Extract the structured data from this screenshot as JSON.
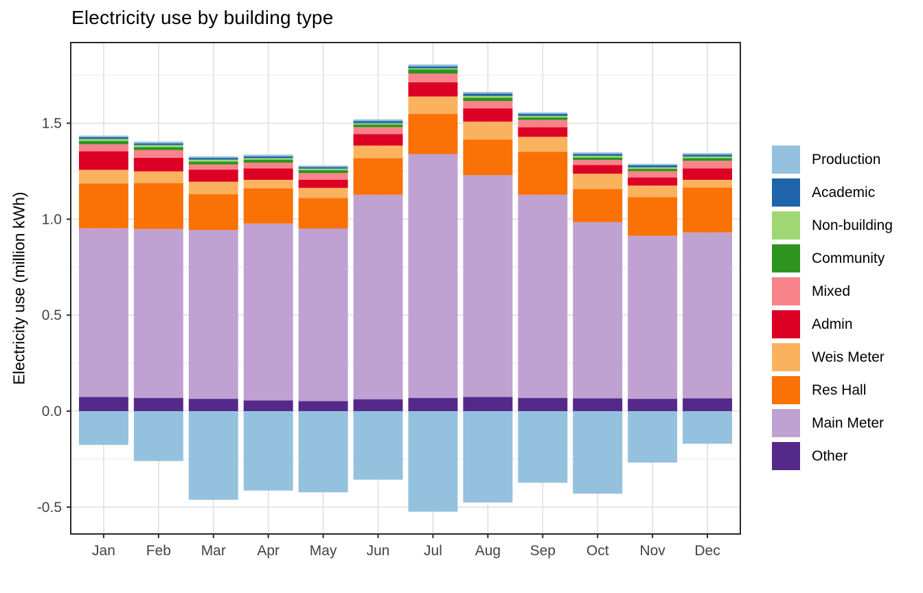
{
  "chart_data": {
    "type": "bar",
    "stacked": true,
    "title": "Electricity use by building type",
    "xlabel": "",
    "ylabel": "Electricity use (million kWh)",
    "categories": [
      "Jan",
      "Feb",
      "Mar",
      "Apr",
      "May",
      "Jun",
      "Jul",
      "Aug",
      "Sep",
      "Oct",
      "Nov",
      "Dec"
    ],
    "ytick_labels": [
      "-0.5",
      "0.0",
      "0.5",
      "1.0",
      "1.5"
    ],
    "ytick_values": [
      -0.5,
      0.0,
      0.5,
      1.0,
      1.5
    ],
    "minor_gridlines": [
      -0.25,
      0.25,
      0.75,
      1.25,
      1.75
    ],
    "ylim": [
      -0.64,
      1.92
    ],
    "grid": "on",
    "legend_position": "right",
    "legend_order": [
      "Production",
      "Academic",
      "Non-building",
      "Community",
      "Mixed",
      "Admin",
      "Weis Meter",
      "Res Hall",
      "Main Meter",
      "Other"
    ],
    "colors": {
      "Production": "#94c1dd",
      "Academic": "#1f63a8",
      "Non-building": "#9fd873",
      "Community": "#2d9420",
      "Mixed": "#f8838a",
      "Admin": "#dc0024",
      "Weis Meter": "#fab25f",
      "Res Hall": "#fa7106",
      "Main Meter": "#c0a2d2",
      "Other": "#55298a"
    },
    "series_stack_bottom_to_top": [
      {
        "name": "Other",
        "values": [
          0.074,
          0.069,
          0.064,
          0.056,
          0.052,
          0.062,
          0.069,
          0.074,
          0.069,
          0.067,
          0.064,
          0.067
        ]
      },
      {
        "name": "Main Meter",
        "values": [
          0.878,
          0.88,
          0.88,
          0.921,
          0.899,
          1.065,
          1.27,
          1.155,
          1.058,
          0.918,
          0.849,
          0.864
        ]
      },
      {
        "name": "Res Hall",
        "values": [
          0.234,
          0.238,
          0.186,
          0.183,
          0.159,
          0.191,
          0.209,
          0.186,
          0.224,
          0.172,
          0.202,
          0.234
        ]
      },
      {
        "name": "Weis Meter",
        "values": [
          0.071,
          0.062,
          0.065,
          0.045,
          0.053,
          0.065,
          0.091,
          0.093,
          0.078,
          0.08,
          0.06,
          0.04
        ]
      },
      {
        "name": "Admin",
        "values": [
          0.097,
          0.071,
          0.063,
          0.059,
          0.042,
          0.06,
          0.074,
          0.069,
          0.05,
          0.045,
          0.042,
          0.059
        ]
      },
      {
        "name": "Mixed",
        "values": [
          0.036,
          0.04,
          0.027,
          0.03,
          0.035,
          0.036,
          0.045,
          0.038,
          0.038,
          0.026,
          0.033,
          0.04
        ]
      },
      {
        "name": "Community",
        "values": [
          0.017,
          0.015,
          0.015,
          0.016,
          0.015,
          0.014,
          0.022,
          0.018,
          0.013,
          0.013,
          0.012,
          0.014
        ]
      },
      {
        "name": "Non-building",
        "values": [
          0.011,
          0.011,
          0.01,
          0.008,
          0.008,
          0.007,
          0.006,
          0.009,
          0.008,
          0.009,
          0.008,
          0.008
        ]
      },
      {
        "name": "Academic",
        "values": [
          0.009,
          0.009,
          0.009,
          0.009,
          0.008,
          0.011,
          0.01,
          0.012,
          0.01,
          0.009,
          0.01,
          0.01
        ]
      },
      {
        "name": "Production",
        "values": [
          0.008,
          0.009,
          0.008,
          0.009,
          0.008,
          0.009,
          0.01,
          0.009,
          0.008,
          0.009,
          0.008,
          0.008
        ]
      },
      {
        "name": "Production",
        "values": [
          -0.176,
          -0.26,
          -0.462,
          -0.414,
          -0.423,
          -0.357,
          -0.524,
          -0.476,
          -0.373,
          -0.43,
          -0.268,
          -0.17
        ]
      }
    ]
  }
}
